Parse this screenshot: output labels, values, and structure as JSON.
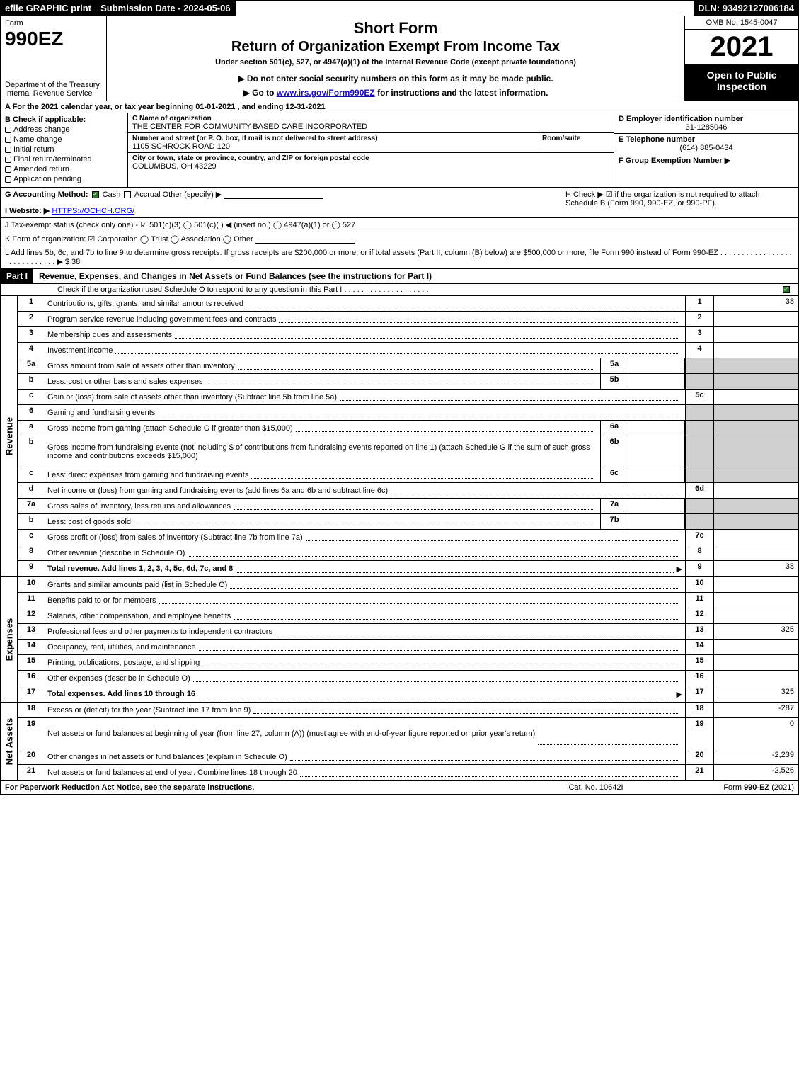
{
  "topbar": {
    "efile": "efile GRAPHIC print",
    "submission": "Submission Date - 2024-05-06",
    "dln": "DLN: 93492127006184"
  },
  "header": {
    "form_label": "Form",
    "form_number": "990EZ",
    "dept": "Department of the Treasury\nInternal Revenue Service",
    "short_form": "Short Form",
    "return_of": "Return of Organization Exempt From Income Tax",
    "under": "Under section 501(c), 527, or 4947(a)(1) of the Internal Revenue Code (except private foundations)",
    "donot": "▶ Do not enter social security numbers on this form as it may be made public.",
    "goto_pre": "▶ Go to ",
    "goto_link": "www.irs.gov/Form990EZ",
    "goto_post": " for instructions and the latest information.",
    "omb": "OMB No. 1545-0047",
    "year": "2021",
    "open": "Open to Public Inspection"
  },
  "section_a": "A  For the 2021 calendar year, or tax year beginning 01-01-2021 , and ending 12-31-2021",
  "section_b": {
    "label": "B  Check if applicable:",
    "items": [
      "Address change",
      "Name change",
      "Initial return",
      "Final return/terminated",
      "Amended return",
      "Application pending"
    ]
  },
  "section_c": {
    "name_label": "C Name of organization",
    "name": "THE CENTER FOR COMMUNITY BASED CARE INCORPORATED",
    "addr_label": "Number and street (or P. O. box, if mail is not delivered to street address)",
    "room_label": "Room/suite",
    "addr": "1105 SCHROCK ROAD 120",
    "city_label": "City or town, state or province, country, and ZIP or foreign postal code",
    "city": "COLUMBUS, OH  43229"
  },
  "section_de": {
    "d_label": "D Employer identification number",
    "d_value": "31-1285046",
    "e_label": "E Telephone number",
    "e_value": "(614) 885-0434",
    "f_label": "F Group Exemption Number  ▶"
  },
  "section_g": {
    "label": "G Accounting Method:",
    "cash": "Cash",
    "accrual": "Accrual",
    "other": "Other (specify) ▶"
  },
  "section_h": "H  Check ▶ ☑ if the organization is not required to attach Schedule B (Form 990, 990-EZ, or 990-PF).",
  "section_i": {
    "label": "I Website: ▶",
    "url": "HTTPS://OCHCH.ORG/"
  },
  "section_j": "J Tax-exempt status (check only one) - ☑ 501(c)(3)  ◯ 501(c)(  ) ◀ (insert no.)  ◯ 4947(a)(1) or  ◯ 527",
  "section_k": "K Form of organization:  ☑ Corporation  ◯ Trust  ◯ Association  ◯ Other",
  "section_l": "L Add lines 5b, 6c, and 7b to line 9 to determine gross receipts. If gross receipts are $200,000 or more, or if total assets (Part II, column (B) below) are $500,000 or more, file Form 990 instead of Form 990-EZ  .  .  .  .  .  .  .  .  .  .  .  .  .  .  .  .  .  .  .  .  .  .  .  .  .  .  .  .  .  ▶ $ 38",
  "part1": {
    "tag": "Part I",
    "title": "Revenue, Expenses, and Changes in Net Assets or Fund Balances (see the instructions for Part I)",
    "sub": "Check if the organization used Schedule O to respond to any question in this Part I  .  .  .  .  .  .  .  .  .  .  .  .  .  .  .  .  .  .  .  .",
    "sub_checked": true
  },
  "sections": {
    "revenue": "Revenue",
    "expenses": "Expenses",
    "netassets": "Net Assets"
  },
  "revenue_lines": [
    {
      "n": "1",
      "desc": "Contributions, gifts, grants, and similar amounts received",
      "rn": "1",
      "rv": "38"
    },
    {
      "n": "2",
      "desc": "Program service revenue including government fees and contracts",
      "rn": "2",
      "rv": ""
    },
    {
      "n": "3",
      "desc": "Membership dues and assessments",
      "rn": "3",
      "rv": ""
    },
    {
      "n": "4",
      "desc": "Investment income",
      "rn": "4",
      "rv": ""
    },
    {
      "n": "5a",
      "desc": "Gross amount from sale of assets other than inventory",
      "mb": "5a",
      "shade": true
    },
    {
      "n": "b",
      "desc": "Less: cost or other basis and sales expenses",
      "mb": "5b",
      "shade": true
    },
    {
      "n": "c",
      "desc": "Gain or (loss) from sale of assets other than inventory (Subtract line 5b from line 5a)",
      "rn": "5c",
      "rv": ""
    },
    {
      "n": "6",
      "desc": "Gaming and fundraising events",
      "shade": true,
      "noright": true
    },
    {
      "n": "a",
      "desc": "Gross income from gaming (attach Schedule G if greater than $15,000)",
      "mb": "6a",
      "shade": true
    },
    {
      "n": "b",
      "desc": "Gross income from fundraising events (not including $                    of contributions from fundraising events reported on line 1) (attach Schedule G if the sum of such gross income and contributions exceeds $15,000)",
      "mb": "6b",
      "shade": true,
      "multi": true
    },
    {
      "n": "c",
      "desc": "Less: direct expenses from gaming and fundraising events",
      "mb": "6c",
      "shade": true
    },
    {
      "n": "d",
      "desc": "Net income or (loss) from gaming and fundraising events (add lines 6a and 6b and subtract line 6c)",
      "rn": "6d",
      "rv": ""
    },
    {
      "n": "7a",
      "desc": "Gross sales of inventory, less returns and allowances",
      "mb": "7a",
      "shade": true
    },
    {
      "n": "b",
      "desc": "Less: cost of goods sold",
      "mb": "7b",
      "shade": true
    },
    {
      "n": "c",
      "desc": "Gross profit or (loss) from sales of inventory (Subtract line 7b from line 7a)",
      "rn": "7c",
      "rv": ""
    },
    {
      "n": "8",
      "desc": "Other revenue (describe in Schedule O)",
      "rn": "8",
      "rv": ""
    },
    {
      "n": "9",
      "desc": "Total revenue. Add lines 1, 2, 3, 4, 5c, 6d, 7c, and 8",
      "rn": "9",
      "rv": "38",
      "bold": true,
      "arrow": true
    }
  ],
  "expense_lines": [
    {
      "n": "10",
      "desc": "Grants and similar amounts paid (list in Schedule O)",
      "rn": "10",
      "rv": ""
    },
    {
      "n": "11",
      "desc": "Benefits paid to or for members",
      "rn": "11",
      "rv": ""
    },
    {
      "n": "12",
      "desc": "Salaries, other compensation, and employee benefits",
      "rn": "12",
      "rv": ""
    },
    {
      "n": "13",
      "desc": "Professional fees and other payments to independent contractors",
      "rn": "13",
      "rv": "325"
    },
    {
      "n": "14",
      "desc": "Occupancy, rent, utilities, and maintenance",
      "rn": "14",
      "rv": ""
    },
    {
      "n": "15",
      "desc": "Printing, publications, postage, and shipping",
      "rn": "15",
      "rv": ""
    },
    {
      "n": "16",
      "desc": "Other expenses (describe in Schedule O)",
      "rn": "16",
      "rv": ""
    },
    {
      "n": "17",
      "desc": "Total expenses. Add lines 10 through 16",
      "rn": "17",
      "rv": "325",
      "bold": true,
      "arrow": true
    }
  ],
  "netasset_lines": [
    {
      "n": "18",
      "desc": "Excess or (deficit) for the year (Subtract line 17 from line 9)",
      "rn": "18",
      "rv": "-287"
    },
    {
      "n": "19",
      "desc": "Net assets or fund balances at beginning of year (from line 27, column (A)) (must agree with end-of-year figure reported on prior year's return)",
      "rn": "19",
      "rv": "0",
      "multi": true
    },
    {
      "n": "20",
      "desc": "Other changes in net assets or fund balances (explain in Schedule O)",
      "rn": "20",
      "rv": "-2,239"
    },
    {
      "n": "21",
      "desc": "Net assets or fund balances at end of year. Combine lines 18 through 20",
      "rn": "21",
      "rv": "-2,526"
    }
  ],
  "footer": {
    "left": "For Paperwork Reduction Act Notice, see the separate instructions.",
    "mid": "Cat. No. 10642I",
    "right": "Form 990-EZ (2021)"
  },
  "colors": {
    "black": "#000000",
    "white": "#ffffff",
    "shade": "#d0d0d0",
    "check_green": "#2a7a2a",
    "link": "#1a0dab"
  }
}
